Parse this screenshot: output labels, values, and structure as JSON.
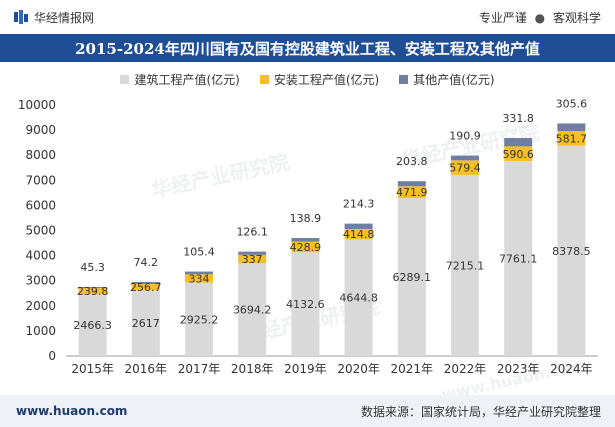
{
  "header": {
    "site_name": "华经情报网",
    "slogan_left": "专业严谨",
    "slogan_sep": "●",
    "slogan_right": "客观科学"
  },
  "watermark": {
    "text_cn": "华经产业研究院",
    "text_en": "www.huaon.com"
  },
  "footer": {
    "url": "www.huaon.com",
    "source": "数据来源：国家统计局，华经产业研究院整理"
  },
  "colors": {
    "title_bg": "#1f4e96",
    "construction": "#d9d9d9",
    "installation": "#f7c022",
    "other": "#6f7fa3",
    "axis_text": "#333333"
  },
  "chart_data": {
    "type": "bar",
    "stacked": true,
    "title": "2015-2024年四川国有及国有控股建筑业工程、安装工程及其他产值",
    "xlabel": "",
    "ylabel": "",
    "ylim": [
      0,
      10000
    ],
    "yticks": [
      0,
      1000,
      2000,
      3000,
      4000,
      5000,
      6000,
      7000,
      8000,
      9000,
      10000
    ],
    "legend_position": "top",
    "categories": [
      "2015年",
      "2016年",
      "2017年",
      "2018年",
      "2019年",
      "2020年",
      "2021年",
      "2022年",
      "2023年",
      "2024年"
    ],
    "series": [
      {
        "name": "建筑工程产值(亿元)",
        "values": [
          2466.3,
          2617,
          2925.2,
          3694.2,
          4132.6,
          4644.8,
          6289.1,
          7215.1,
          7761.1,
          8378.5
        ]
      },
      {
        "name": "安装工程产值(亿元)",
        "values": [
          239.8,
          256.7,
          334,
          337,
          428.9,
          414.8,
          471.9,
          579.4,
          590.6,
          581.7
        ]
      },
      {
        "name": "其他产值(亿元)",
        "values": [
          45.3,
          74.2,
          105.4,
          126.1,
          138.9,
          214.3,
          203.8,
          190.9,
          331.8,
          305.6
        ]
      }
    ],
    "labels": [
      [
        "2466.3",
        "2617",
        "2925.2",
        "3694.2",
        "4132.6",
        "4644.8",
        "6289.1",
        "7215.1",
        "7761.1",
        "8378.5"
      ],
      [
        "239.8",
        "256.7",
        "334",
        "337",
        "428.9",
        "414.8",
        "471.9",
        "579.4",
        "590.6",
        "581.7"
      ],
      [
        "45.3",
        "74.2",
        "105.4",
        "126.1",
        "138.9",
        "214.3",
        "203.8",
        "190.9",
        "331.8",
        "305.6"
      ]
    ]
  }
}
